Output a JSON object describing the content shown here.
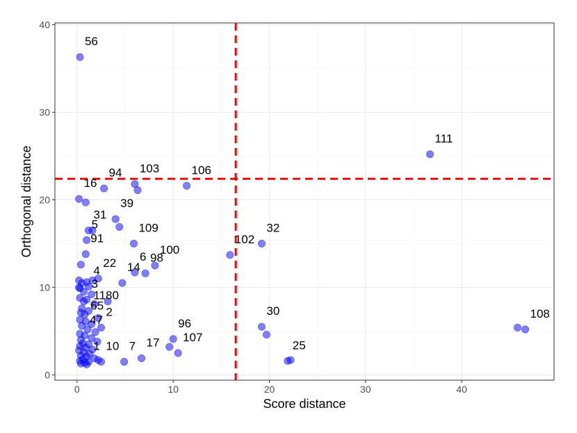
{
  "chart_data": {
    "type": "scatter",
    "xlabel": "Score distance",
    "ylabel": "Orthogonal distance",
    "xlim": [
      -2.3,
      49.6
    ],
    "ylim": [
      -0.6,
      40.2
    ],
    "x_ticks": [
      0,
      10,
      20,
      30,
      40
    ],
    "y_ticks": [
      0,
      10,
      20,
      30,
      40
    ],
    "grid": true,
    "point_color": "#0000ff",
    "threshold_color": "#ff0000",
    "thresholds": {
      "x": 16.5,
      "y": 22.4
    },
    "points": [
      {
        "x": 0.3,
        "y": 36.3,
        "label": "56"
      },
      {
        "x": 36.7,
        "y": 25.2,
        "label": "111"
      },
      {
        "x": 6.0,
        "y": 21.8,
        "label": "103"
      },
      {
        "x": 11.4,
        "y": 21.6,
        "label": "106"
      },
      {
        "x": 2.8,
        "y": 21.3,
        "label": "94"
      },
      {
        "x": 0.2,
        "y": 20.1,
        "label": "16"
      },
      {
        "x": 6.3,
        "y": 21.1
      },
      {
        "x": 0.9,
        "y": 19.7
      },
      {
        "x": 4.0,
        "y": 17.8,
        "label": "39"
      },
      {
        "x": 4.4,
        "y": 16.9
      },
      {
        "x": 1.2,
        "y": 16.5,
        "label": "31"
      },
      {
        "x": 1.6,
        "y": 16.5
      },
      {
        "x": 19.2,
        "y": 15.0,
        "label": "32"
      },
      {
        "x": 5.9,
        "y": 15.0,
        "label": "109"
      },
      {
        "x": 1.0,
        "y": 15.4,
        "label": "5"
      },
      {
        "x": 15.9,
        "y": 13.7,
        "label": "102"
      },
      {
        "x": 0.9,
        "y": 13.8,
        "label": "91"
      },
      {
        "x": 0.4,
        "y": 12.6
      },
      {
        "x": 8.1,
        "y": 12.5,
        "label": "100"
      },
      {
        "x": 6.0,
        "y": 11.7,
        "label": "6"
      },
      {
        "x": 7.1,
        "y": 11.6,
        "label": "98"
      },
      {
        "x": 2.2,
        "y": 11.0,
        "label": "22"
      },
      {
        "x": 1.6,
        "y": 10.8
      },
      {
        "x": 1.0,
        "y": 10.6
      },
      {
        "x": 0.5,
        "y": 10.5
      },
      {
        "x": 0.2,
        "y": 10.8
      },
      {
        "x": 4.7,
        "y": 10.5,
        "label": "14"
      },
      {
        "x": 0.2,
        "y": 10.0
      },
      {
        "x": 0.3,
        "y": 9.9
      },
      {
        "x": 1.2,
        "y": 10.1,
        "label": "4"
      },
      {
        "x": 0.7,
        "y": 9.5
      },
      {
        "x": 1.5,
        "y": 9.2
      },
      {
        "x": 0.3,
        "y": 8.8
      },
      {
        "x": 1.0,
        "y": 8.6,
        "label": "3"
      },
      {
        "x": 0.7,
        "y": 8.4
      },
      {
        "x": 3.2,
        "y": 8.4
      },
      {
        "x": 1.8,
        "y": 8.1
      },
      {
        "x": 0.5,
        "y": 7.6
      },
      {
        "x": 1.2,
        "y": 7.3,
        "label": "1180"
      },
      {
        "x": 0.4,
        "y": 7.1
      },
      {
        "x": 0.8,
        "y": 6.9
      },
      {
        "x": 2.2,
        "y": 6.5
      },
      {
        "x": 0.3,
        "y": 6.3
      },
      {
        "x": 0.9,
        "y": 6.1,
        "label": "65"
      },
      {
        "x": 1.5,
        "y": 5.8
      },
      {
        "x": 0.5,
        "y": 5.6
      },
      {
        "x": 2.5,
        "y": 5.4,
        "label": "2"
      },
      {
        "x": 1.1,
        "y": 5.2
      },
      {
        "x": 19.2,
        "y": 5.5,
        "label": "30"
      },
      {
        "x": 45.8,
        "y": 5.4
      },
      {
        "x": 46.6,
        "y": 5.2,
        "label": "108"
      },
      {
        "x": 1.9,
        "y": 4.9
      },
      {
        "x": 0.3,
        "y": 4.7
      },
      {
        "x": 19.7,
        "y": 4.6
      },
      {
        "x": 0.8,
        "y": 4.5,
        "label": "47"
      },
      {
        "x": 1.5,
        "y": 4.2
      },
      {
        "x": 0.4,
        "y": 4.0
      },
      {
        "x": 10.0,
        "y": 4.1,
        "label": "96"
      },
      {
        "x": 2.1,
        "y": 3.8
      },
      {
        "x": 0.6,
        "y": 3.6
      },
      {
        "x": 1.2,
        "y": 3.5
      },
      {
        "x": 0.3,
        "y": 3.3
      },
      {
        "x": 9.6,
        "y": 3.2
      },
      {
        "x": 0.9,
        "y": 3.1
      },
      {
        "x": 1.6,
        "y": 2.9
      },
      {
        "x": 0.2,
        "y": 2.8
      },
      {
        "x": 0.7,
        "y": 2.6
      },
      {
        "x": 10.5,
        "y": 2.5,
        "label": "107"
      },
      {
        "x": 1.3,
        "y": 2.4
      },
      {
        "x": 0.4,
        "y": 2.2
      },
      {
        "x": 1.0,
        "y": 2.1
      },
      {
        "x": 1.8,
        "y": 1.9
      },
      {
        "x": 6.7,
        "y": 1.9,
        "label": "17"
      },
      {
        "x": 0.6,
        "y": 1.8
      },
      {
        "x": 2.2,
        "y": 1.7
      },
      {
        "x": 22.2,
        "y": 1.7
      },
      {
        "x": 21.9,
        "y": 1.6,
        "label": "25"
      },
      {
        "x": 0.3,
        "y": 1.6
      },
      {
        "x": 1.2,
        "y": 1.5,
        "label": "1"
      },
      {
        "x": 2.5,
        "y": 1.5,
        "label": "10"
      },
      {
        "x": 4.9,
        "y": 1.5,
        "label": "7"
      },
      {
        "x": 0.8,
        "y": 1.4
      },
      {
        "x": 0.4,
        "y": 1.3
      },
      {
        "x": 1.0,
        "y": 1.2
      }
    ]
  }
}
